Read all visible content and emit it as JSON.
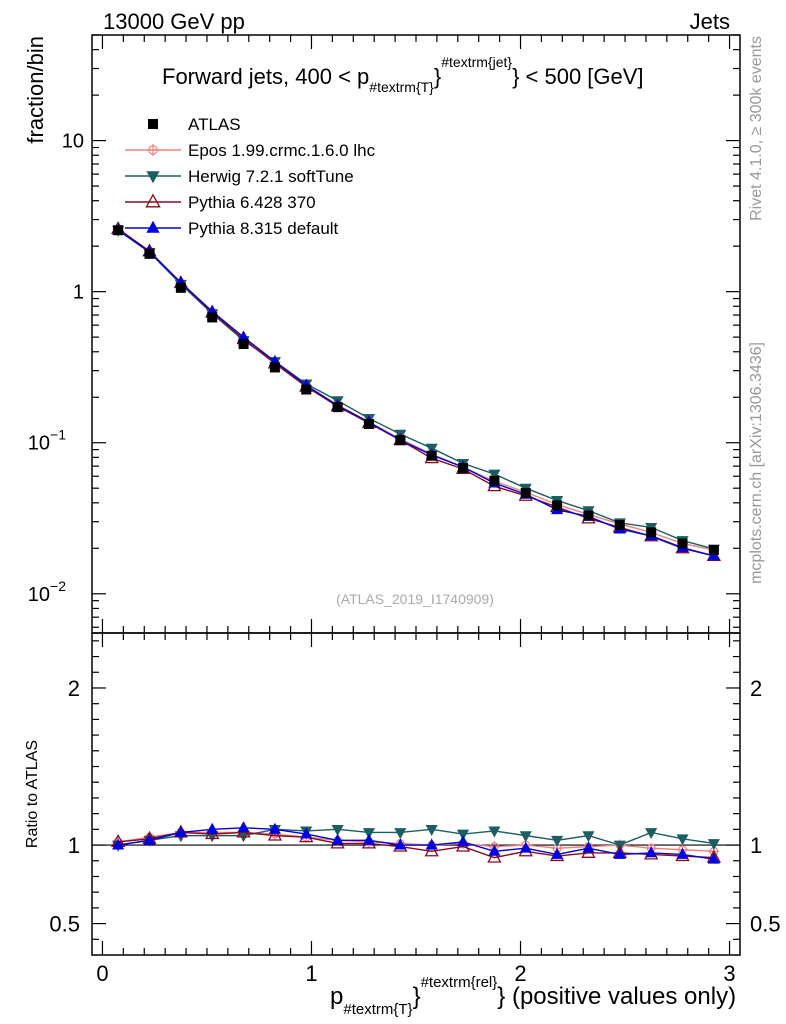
{
  "header": {
    "left": "13000 GeV pp",
    "right": "Jets"
  },
  "side_text": {
    "upper": "Rivet 4.1.0, ≥ 300k events",
    "lower": "mcplots.cern.ch [arXiv:1306.3436]"
  },
  "chart_data": [
    {
      "type": "line",
      "title": "Forward jets, 400 < p",
      "title_sub": "#textrm{T}",
      "title_sup": "#textrm{jet}",
      "title_end": " < 500 [GeV]",
      "ylabel": "fraction/bin",
      "yscale": "log",
      "ylim": [
        0.0055,
        50
      ],
      "xlim": [
        -0.05,
        3.05
      ],
      "yticks": [
        {
          "value": 10,
          "base": "10",
          "exp": ""
        },
        {
          "value": 1,
          "base": "1",
          "exp": ""
        },
        {
          "value": 0.1,
          "base": "10",
          "exp": "−1"
        },
        {
          "value": 0.01,
          "base": "10",
          "exp": "−2"
        }
      ],
      "watermark": "(ATLAS_2019_I1740909)",
      "x": [
        0.075,
        0.225,
        0.375,
        0.525,
        0.675,
        0.825,
        0.975,
        1.125,
        1.275,
        1.425,
        1.575,
        1.725,
        1.875,
        2.025,
        2.175,
        2.325,
        2.475,
        2.625,
        2.775,
        2.925
      ],
      "series": [
        {
          "name": "ATLAS",
          "color": "#000000",
          "marker": "square",
          "values": [
            2.55,
            1.78,
            1.06,
            0.675,
            0.45,
            0.315,
            0.225,
            0.172,
            0.133,
            0.104,
            0.082,
            0.068,
            0.056,
            0.0465,
            0.0385,
            0.033,
            0.0285,
            0.0255,
            0.0215,
            0.0195
          ]
        },
        {
          "name": "Epos 1.99.crmc.1.6.0 lhc",
          "color": "#f08080",
          "marker": "cross",
          "values": [
            2.62,
            1.86,
            1.14,
            0.73,
            0.485,
            0.34,
            0.238,
            0.178,
            0.137,
            0.106,
            0.084,
            0.069,
            0.0555,
            0.047,
            0.039,
            0.0335,
            0.029,
            0.0255,
            0.0215,
            0.0195
          ]
        },
        {
          "name": "Herwig 7.2.1 softTune",
          "color": "#1b5e63",
          "marker": "triangle-down",
          "values": [
            2.55,
            1.82,
            1.12,
            0.715,
            0.475,
            0.345,
            0.245,
            0.19,
            0.145,
            0.114,
            0.092,
            0.073,
            0.062,
            0.05,
            0.0415,
            0.0355,
            0.0295,
            0.0275,
            0.0225,
            0.0198
          ]
        },
        {
          "name": "Pythia 6.428 370",
          "color": "#8b0a1e",
          "marker": "triangle-open",
          "values": [
            2.6,
            1.85,
            1.14,
            0.725,
            0.485,
            0.335,
            0.235,
            0.174,
            0.135,
            0.104,
            0.079,
            0.067,
            0.0515,
            0.0445,
            0.0375,
            0.0315,
            0.0275,
            0.024,
            0.02,
            0.0178
          ]
        },
        {
          "name": "Pythia 8.315 default",
          "color": "#0000e0",
          "marker": "triangle-up",
          "values": [
            2.55,
            1.84,
            1.15,
            0.74,
            0.5,
            0.345,
            0.24,
            0.176,
            0.137,
            0.104,
            0.083,
            0.069,
            0.054,
            0.0455,
            0.036,
            0.0325,
            0.0268,
            0.0242,
            0.0202,
            0.0178
          ]
        }
      ]
    },
    {
      "type": "line",
      "title": "",
      "ylabel": "Ratio to ATLAS",
      "ylim": [
        0.3,
        2.35
      ],
      "xlim": [
        -0.05,
        3.05
      ],
      "yticks": [
        {
          "value": 2,
          "label": "2"
        },
        {
          "value": 1,
          "label": "1"
        },
        {
          "value": 0.5,
          "label": "0.5"
        }
      ],
      "xticks": [
        {
          "value": 0,
          "label": "0"
        },
        {
          "value": 1,
          "label": "1"
        },
        {
          "value": 2,
          "label": "2"
        },
        {
          "value": 3,
          "label": "3"
        }
      ],
      "xlabel_main": "p",
      "xlabel_sub": "#textrm{T}",
      "xlabel_sup": "#textrm{rel}",
      "xlabel_end": " (positive values only)",
      "x": [
        0.075,
        0.225,
        0.375,
        0.525,
        0.675,
        0.825,
        0.975,
        1.125,
        1.275,
        1.425,
        1.575,
        1.725,
        1.875,
        2.025,
        2.175,
        2.325,
        2.475,
        2.625,
        2.775,
        2.925
      ],
      "series": [
        {
          "name": "Epos 1.99.crmc.1.6.0 lhc",
          "color": "#f08080",
          "marker": "cross",
          "values": [
            1.02,
            1.05,
            1.08,
            1.08,
            1.08,
            1.07,
            1.05,
            1.03,
            1.02,
            1.01,
            1.0,
            1.01,
            0.99,
            1.0,
            0.98,
            0.99,
            1.0,
            0.98,
            0.97,
            0.96
          ]
        },
        {
          "name": "Herwig 7.2.1 softTune",
          "color": "#1b5e63",
          "marker": "triangle-down",
          "values": [
            1.0,
            1.03,
            1.06,
            1.06,
            1.06,
            1.1,
            1.09,
            1.1,
            1.08,
            1.08,
            1.1,
            1.07,
            1.09,
            1.06,
            1.03,
            1.06,
            1.0,
            1.08,
            1.04,
            1.01
          ]
        },
        {
          "name": "Pythia 6.428 370",
          "color": "#8b0a1e",
          "marker": "triangle-open",
          "values": [
            1.02,
            1.04,
            1.08,
            1.07,
            1.08,
            1.06,
            1.05,
            1.01,
            1.01,
            0.99,
            0.96,
            0.99,
            0.92,
            0.96,
            0.93,
            0.95,
            0.95,
            0.94,
            0.93,
            0.92
          ]
        },
        {
          "name": "Pythia 8.315 default",
          "color": "#0000e0",
          "marker": "triangle-up",
          "values": [
            1.0,
            1.03,
            1.08,
            1.1,
            1.11,
            1.1,
            1.07,
            1.03,
            1.03,
            1.0,
            1.0,
            1.02,
            0.96,
            0.98,
            0.94,
            0.98,
            0.94,
            0.95,
            0.94,
            0.91
          ]
        }
      ]
    }
  ]
}
